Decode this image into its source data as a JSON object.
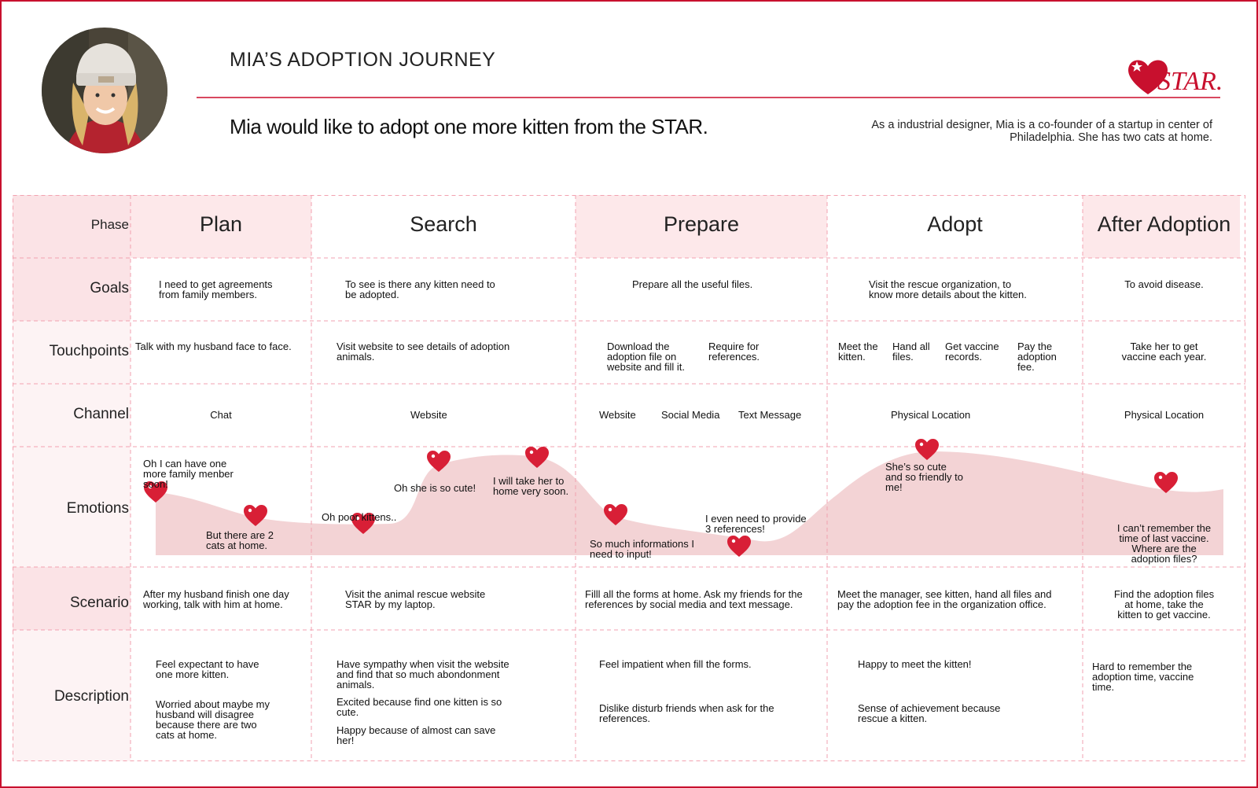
{
  "header": {
    "title": "MIA’S ADOPTION JOURNEY",
    "headline": "Mia would like to adopt one more kitten from the STAR.",
    "bio_line1": "As a industrial designer, Mia is a co-founder of a startup in center of",
    "bio_line2": "Philadelphia. She has two cats at home.",
    "logo_text": "STAR.",
    "brand_color": "#c8102e"
  },
  "rows": {
    "phase": "Phase",
    "goals": "Goals",
    "touchpoints": "Touchpoints",
    "channel": "Channel",
    "emotions": "Emotions",
    "scenario": "Scenario",
    "description": "Description"
  },
  "phases": [
    "Plan",
    "Search",
    "Prepare",
    "Adopt",
    "After Adoption"
  ],
  "goals": [
    [
      "I need to get agreements",
      "from family members."
    ],
    [
      "To see is there any kitten need to",
      "be adopted."
    ],
    [
      "Prepare all the useful files."
    ],
    [
      "Visit the rescue organization, to",
      "know more details about the kitten."
    ],
    [
      "To avoid disease."
    ]
  ],
  "touchpoints": {
    "plan": "Talk with my husband face to face.",
    "search": [
      "Visit website to see details of adoption",
      "animals."
    ],
    "prepare_1": [
      "Download the",
      "adoption file on",
      "website and fill it."
    ],
    "prepare_2": [
      "Require for",
      "references."
    ],
    "adopt_1": [
      "Meet the",
      "kitten."
    ],
    "adopt_2": [
      "Hand all",
      "files."
    ],
    "adopt_3": [
      "Get vaccine",
      "records."
    ],
    "adopt_4": [
      "Pay the",
      "adoption",
      "fee."
    ],
    "after": [
      "Take her to get",
      "vaccine each year."
    ]
  },
  "channels": {
    "plan": "Chat",
    "search": "Website",
    "prepare_1": "Website",
    "prepare_2": "Social Media",
    "prepare_3": "Text Message",
    "adopt": "Physical Location",
    "after": "Physical Location"
  },
  "emotions": {
    "e1": [
      "Oh I can have one",
      "more family menber",
      "soon!"
    ],
    "e2": [
      "But there are 2",
      "cats at home."
    ],
    "e3": "Oh poor kittens..",
    "e4": "Oh she is so cute!",
    "e5": [
      "I will take her to",
      "home very soon."
    ],
    "e6": [
      "So much informations I",
      "need to input!"
    ],
    "e7": [
      "I even need to provide",
      "3 references!"
    ],
    "e8": [
      "She’s so cute",
      "and so friendly to",
      "me!"
    ],
    "e9": [
      "I can’t remember the",
      "time of last vaccine.",
      "Where are the",
      "adoption files?"
    ]
  },
  "scenarios": [
    [
      "After my husband finish one day",
      "working, talk with him at home."
    ],
    [
      "Visit the animal rescue website",
      "STAR by my laptop."
    ],
    [
      "Filll  all the forms at home. Ask my friends for the",
      "references by social media and text message."
    ],
    [
      "Meet the manager, see kitten, hand all files and",
      "pay the adoption fee in the organization office."
    ],
    [
      "Find the adoption files",
      "at home, take the",
      "kitten to get vaccine."
    ]
  ],
  "descriptions": {
    "plan_1": [
      "Feel expectant to have",
      "one more kitten."
    ],
    "plan_2": [
      "Worried about maybe my",
      "husband will disagree",
      "because there are two",
      "cats at home."
    ],
    "search_1": [
      "Have sympathy when visit the website",
      "and find that so much abondonment",
      "animals."
    ],
    "search_2": [
      "Excited because find one kitten is so",
      "cute."
    ],
    "search_3": [
      "Happy because of almost can save",
      "her!"
    ],
    "prepare_1": "Feel impatient when fill the forms.",
    "prepare_2": [
      "Dislike disturb friends when ask for the",
      "references."
    ],
    "adopt_1": "Happy to meet the kitten!",
    "adopt_2": [
      "Sense of achievement because",
      "rescue a kitten."
    ],
    "after_1": [
      "Hard to remember the",
      "adoption time, vaccine",
      "time."
    ]
  },
  "colors": {
    "label_fill": "#fdf3f4",
    "phase_fill": "#fde8ea",
    "curve_fill": "#f3d3d5",
    "heart": "#d81f36",
    "grid_line": "#f2a2b0"
  }
}
